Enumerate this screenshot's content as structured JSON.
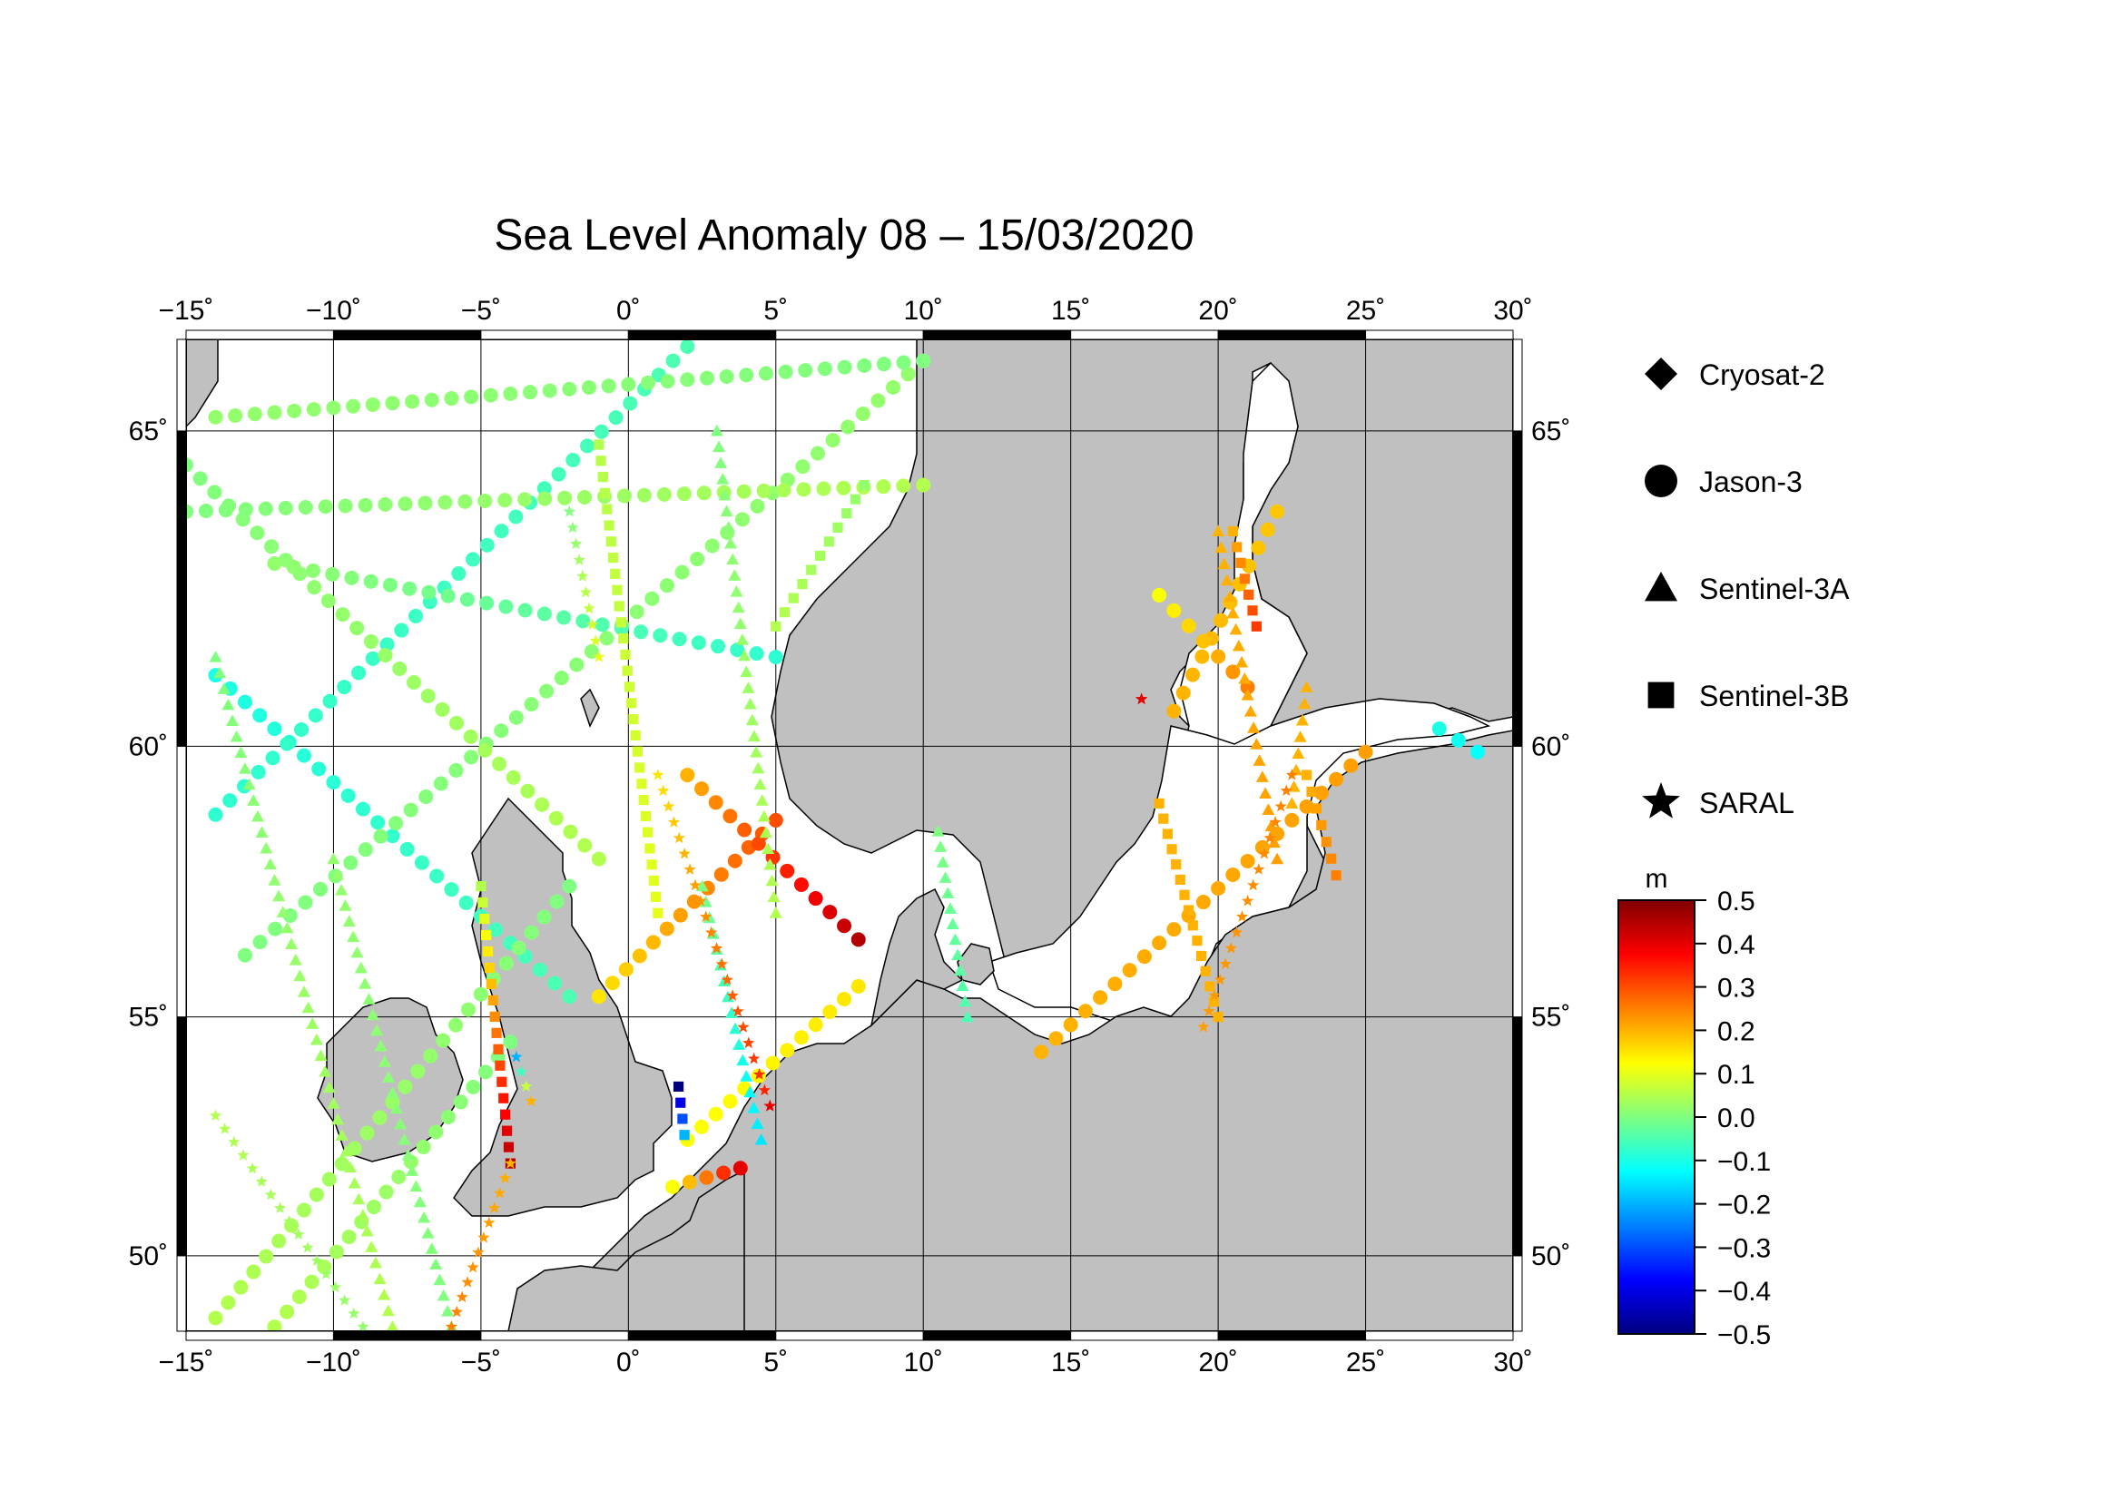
{
  "title": "Sea Level Anomaly 08 – 15/03/2020",
  "map": {
    "lon_range": [
      -15,
      30
    ],
    "lat_range": [
      48.3,
      66.3
    ],
    "lon_ticks": [
      -15,
      -10,
      -5,
      0,
      5,
      10,
      15,
      20,
      25,
      30
    ],
    "lat_ticks": [
      50,
      55,
      60,
      65
    ],
    "lon_labels": [
      "−15˚",
      "−10˚",
      "−5˚",
      "0˚",
      "5˚",
      "10˚",
      "15˚",
      "20˚",
      "25˚",
      "30˚"
    ],
    "lat_labels": [
      "50˚",
      "55˚",
      "60˚",
      "65˚"
    ],
    "land_color": "#c0c0c0",
    "sea_color": "#ffffff",
    "grid": true
  },
  "legend": {
    "items": [
      {
        "label": "Cryosat-2",
        "symbol": "diamond"
      },
      {
        "label": "Jason-3",
        "symbol": "circle"
      },
      {
        "label": "Sentinel-3A",
        "symbol": "triangle"
      },
      {
        "label": "Sentinel-3B",
        "symbol": "square"
      },
      {
        "label": "SARAL",
        "symbol": "star"
      }
    ]
  },
  "colorbar": {
    "unit": "m",
    "min": -0.5,
    "max": 0.5,
    "tick_values": [
      0.5,
      0.4,
      0.3,
      0.2,
      0.1,
      0.0,
      -0.1,
      -0.2,
      -0.3,
      -0.4,
      -0.5
    ],
    "tick_labels": [
      "0.5",
      "0.4",
      "0.3",
      "0.2",
      "0.1",
      "0.0",
      "−0.1",
      "−0.2",
      "−0.3",
      "−0.4",
      "−0.5"
    ],
    "colors": [
      "#00007f",
      "#0000ff",
      "#0080ff",
      "#00ffff",
      "#80ff80",
      "#ffff00",
      "#ff8000",
      "#ff0000",
      "#7f0000"
    ]
  },
  "tracks": [
    {
      "satellite": "Jason-3",
      "start": [
        -14,
        61.2
      ],
      "end": [
        -2,
        55.4
      ],
      "values": [
        -0.1,
        -0.05
      ]
    },
    {
      "satellite": "Jason-3",
      "start": [
        -14,
        58.8
      ],
      "end": [
        2,
        66.2
      ],
      "values": [
        -0.08,
        -0.05
      ]
    },
    {
      "satellite": "Jason-3",
      "start": [
        -13,
        56.2
      ],
      "end": [
        10,
        66.0
      ],
      "values": [
        0.0,
        0.02
      ]
    },
    {
      "satellite": "Jason-3",
      "start": [
        -15,
        64.5
      ],
      "end": [
        -1,
        58.0
      ],
      "values": [
        0.0,
        0.05
      ]
    },
    {
      "satellite": "Jason-3",
      "start": [
        -12,
        63.0
      ],
      "end": [
        5,
        61.5
      ],
      "values": [
        0.02,
        -0.08
      ]
    },
    {
      "satellite": "Jason-3",
      "start": [
        -15,
        63.8
      ],
      "end": [
        10,
        64.2
      ],
      "values": [
        0.0,
        0.05
      ]
    },
    {
      "satellite": "Jason-3",
      "start": [
        -14,
        65.2
      ],
      "end": [
        10,
        66.0
      ],
      "values": [
        0.02,
        0.0
      ]
    },
    {
      "satellite": "Jason-3",
      "start": [
        -1,
        55.4
      ],
      "end": [
        5,
        58.7
      ],
      "values": [
        0.15,
        0.3
      ]
    },
    {
      "satellite": "Jason-3",
      "start": [
        2,
        59.5
      ],
      "end": [
        7.8,
        56.5
      ],
      "values": [
        0.2,
        0.45
      ]
    },
    {
      "satellite": "Jason-3",
      "start": [
        -14,
        48.6
      ],
      "end": [
        -2,
        57.5
      ],
      "values": [
        0.05,
        0.0
      ]
    },
    {
      "satellite": "Jason-3",
      "start": [
        -12,
        48.4
      ],
      "end": [
        -4,
        54.5
      ],
      "values": [
        0.05,
        0.0
      ]
    },
    {
      "satellite": "Jason-3",
      "start": [
        2,
        52.5
      ],
      "end": [
        7.8,
        55.6
      ],
      "values": [
        0.12,
        0.15
      ]
    },
    {
      "satellite": "Jason-3",
      "start": [
        14,
        54.3
      ],
      "end": [
        25,
        59.9
      ],
      "values": [
        0.2,
        0.22
      ]
    },
    {
      "satellite": "Jason-3",
      "start": [
        18.5,
        60.6
      ],
      "end": [
        22,
        63.8
      ],
      "values": [
        0.2,
        0.18
      ]
    },
    {
      "satellite": "Jason-3",
      "start": [
        18,
        62.5
      ],
      "end": [
        21,
        61.0
      ],
      "values": [
        0.12,
        0.25
      ]
    },
    {
      "satellite": "Jason-3",
      "start": [
        1.5,
        51.5
      ],
      "end": [
        3.8,
        51.9
      ],
      "values": [
        0.12,
        0.4
      ]
    },
    {
      "satellite": "Jason-3",
      "start": [
        27.5,
        60.3
      ],
      "end": [
        28.8,
        59.9
      ],
      "values": [
        -0.1,
        -0.12
      ]
    },
    {
      "satellite": "Sentinel-3A",
      "start": [
        -14,
        61.5
      ],
      "end": [
        -8,
        48.4
      ],
      "values": [
        0.0,
        0.05
      ]
    },
    {
      "satellite": "Sentinel-3A",
      "start": [
        -10,
        58.0
      ],
      "end": [
        -6,
        48.4
      ],
      "values": [
        0.02,
        0.0
      ]
    },
    {
      "satellite": "Sentinel-3A",
      "start": [
        3,
        65.0
      ],
      "end": [
        5,
        57.0
      ],
      "values": [
        0.0,
        0.05
      ]
    },
    {
      "satellite": "Sentinel-3A",
      "start": [
        2.5,
        57.5
      ],
      "end": [
        4.5,
        52.5
      ],
      "values": [
        0.0,
        -0.15
      ]
    },
    {
      "satellite": "Sentinel-3A",
      "start": [
        20,
        63.5
      ],
      "end": [
        22,
        58.0
      ],
      "values": [
        0.2,
        0.22
      ]
    },
    {
      "satellite": "Sentinel-3A",
      "start": [
        23,
        61.0
      ],
      "end": [
        22.5,
        59.0
      ],
      "values": [
        0.2,
        0.2
      ]
    },
    {
      "satellite": "Sentinel-3A",
      "start": [
        10.5,
        58.5
      ],
      "end": [
        11.5,
        55.0
      ],
      "values": [
        0.0,
        -0.05
      ]
    },
    {
      "satellite": "Sentinel-3B",
      "start": [
        -1,
        64.8
      ],
      "end": [
        1,
        57.0
      ],
      "values": [
        0.05,
        0.1
      ]
    },
    {
      "satellite": "Sentinel-3B",
      "start": [
        5,
        62.0
      ],
      "end": [
        8,
        64.2
      ],
      "values": [
        0.05,
        0.02
      ]
    },
    {
      "satellite": "Sentinel-3B",
      "start": [
        -5,
        57.5
      ],
      "end": [
        -4,
        52.0
      ],
      "values": [
        0.05,
        0.45
      ]
    },
    {
      "satellite": "Sentinel-3B",
      "start": [
        1.7,
        53.6
      ],
      "end": [
        1.9,
        52.6
      ],
      "values": [
        -0.5,
        -0.2
      ]
    },
    {
      "satellite": "Sentinel-3B",
      "start": [
        18,
        59.0
      ],
      "end": [
        20,
        55.0
      ],
      "values": [
        0.2,
        0.2
      ]
    },
    {
      "satellite": "Sentinel-3B",
      "start": [
        20.5,
        63.5
      ],
      "end": [
        21.3,
        62.0
      ],
      "values": [
        0.2,
        0.32
      ]
    },
    {
      "satellite": "Sentinel-3B",
      "start": [
        23,
        59.5
      ],
      "end": [
        24,
        57.7
      ],
      "values": [
        0.2,
        0.25
      ]
    },
    {
      "satellite": "SARAL",
      "start": [
        -14,
        53.0
      ],
      "end": [
        -9,
        48.4
      ],
      "values": [
        0.05,
        0.02
      ]
    },
    {
      "satellite": "SARAL",
      "start": [
        -4,
        52.0
      ],
      "end": [
        -6,
        48.4
      ],
      "values": [
        0.2,
        0.25
      ]
    },
    {
      "satellite": "SARAL",
      "start": [
        1,
        59.5
      ],
      "end": [
        4.8,
        53.2
      ],
      "values": [
        0.15,
        0.35
      ]
    },
    {
      "satellite": "SARAL",
      "start": [
        19.5,
        54.8
      ],
      "end": [
        22.5,
        59.5
      ],
      "values": [
        0.22,
        0.25
      ]
    },
    {
      "satellite": "SARAL",
      "start": [
        -3.8,
        54.2
      ],
      "end": [
        -3.3,
        53.3
      ],
      "values": [
        -0.2,
        0.2
      ]
    },
    {
      "satellite": "SARAL",
      "start": [
        -2,
        63.8
      ],
      "end": [
        -1,
        61.5
      ],
      "values": [
        0.0,
        0.1
      ]
    },
    {
      "satellite": "SARAL",
      "start": [
        17.4,
        60.8
      ],
      "end": [
        17.4,
        60.8
      ],
      "values": [
        0.4,
        0.4
      ]
    },
    {
      "satellite": "SARAL",
      "start": [
        4.8,
        53.2
      ],
      "end": [
        4.8,
        53.2
      ],
      "values": [
        0.4,
        0.4
      ]
    }
  ]
}
